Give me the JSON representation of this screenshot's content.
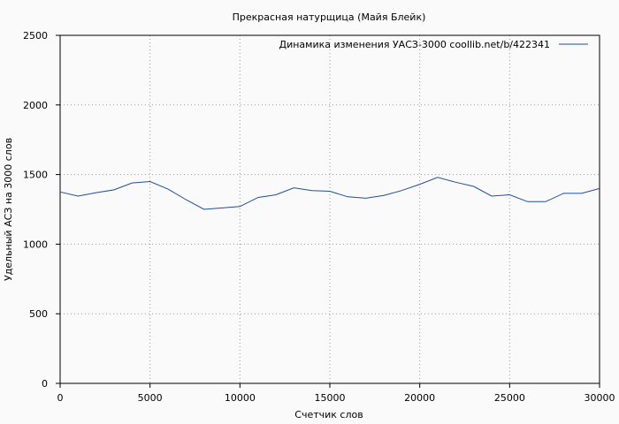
{
  "chart_data": {
    "type": "line",
    "title": "Прекрасная натурщица (Майя Блейк)",
    "xlabel": "Счетчик слов",
    "ylabel": "Удельный АСЗ на 3000 слов",
    "xlim": [
      0,
      30000
    ],
    "ylim": [
      0,
      2500
    ],
    "x_ticks": [
      0,
      5000,
      10000,
      15000,
      20000,
      25000,
      30000
    ],
    "y_ticks": [
      0,
      500,
      1000,
      1500,
      2000,
      2500
    ],
    "grid": true,
    "legend_position": "top-right",
    "series": [
      {
        "name": "Динамика изменения УАСЗ-3000  coollib.net/b/422341",
        "color": "#1f4e9c",
        "x": [
          0,
          1000,
          2000,
          3000,
          4000,
          5000,
          6000,
          7000,
          8000,
          9000,
          10000,
          11000,
          12000,
          13000,
          14000,
          15000,
          16000,
          17000,
          18000,
          19000,
          20000,
          21000,
          22000,
          23000,
          24000,
          25000,
          26000,
          27000,
          28000,
          29000,
          30000
        ],
        "y": [
          1375,
          1345,
          1370,
          1390,
          1440,
          1450,
          1395,
          1320,
          1250,
          1260,
          1270,
          1335,
          1355,
          1405,
          1385,
          1380,
          1340,
          1330,
          1350,
          1385,
          1430,
          1480,
          1445,
          1415,
          1345,
          1355,
          1305,
          1305,
          1365,
          1365,
          1400
        ]
      }
    ]
  }
}
